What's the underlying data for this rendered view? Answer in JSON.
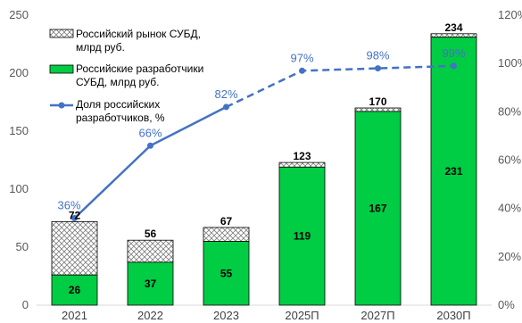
{
  "chart_data": {
    "type": "bar",
    "categories": [
      "2021",
      "2022",
      "2023",
      "2025П",
      "2027П",
      "2030П"
    ],
    "y_left": {
      "min": 0,
      "max": 250,
      "ticks": [
        0,
        50,
        100,
        150,
        200,
        250
      ]
    },
    "y_right": {
      "min": 0,
      "max": 120,
      "ticks": [
        "0%",
        "20%",
        "40%",
        "60%",
        "80%",
        "100%",
        "120%"
      ]
    },
    "series": [
      {
        "name": "Российский рынок СУБД, млрд руб.",
        "kind": "bar-total",
        "pattern": "crosshatch",
        "values": [
          72,
          56,
          67,
          123,
          170,
          234
        ]
      },
      {
        "name": "Российские разработчики СУБД, млрд руб.",
        "kind": "bar",
        "color": "#00cc44",
        "values": [
          26,
          37,
          55,
          119,
          167,
          231
        ]
      },
      {
        "name": "Доля российских разработчиков, %",
        "kind": "line",
        "axis": "right",
        "color": "#4472c4",
        "values": [
          36,
          66,
          82,
          97,
          98,
          99
        ],
        "labels": [
          "36%",
          "66%",
          "82%",
          "97%",
          "98%",
          "99%"
        ],
        "dashed_from_index": 2
      }
    ],
    "grid": false,
    "legend_position": "top-left"
  }
}
